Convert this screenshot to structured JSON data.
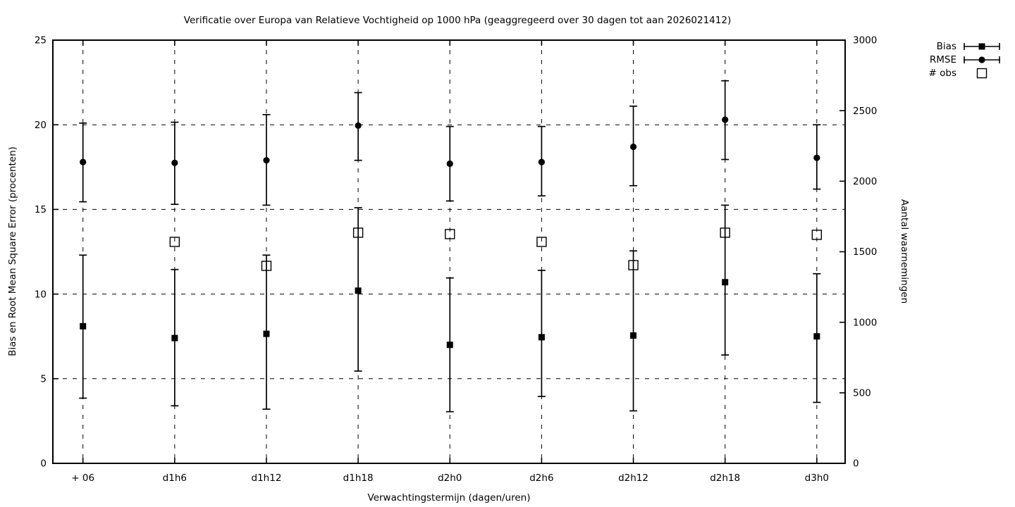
{
  "colors": {
    "foreground": "#000000",
    "background": "#ffffff"
  },
  "chart_data": {
    "type": "scatter",
    "title": "Verificatie over Europa van Relatieve Vochtigheid op 1000 hPa (geaggregeerd over 30 dagen tot aan 2026021412)",
    "xlabel": "Verwachtingstermijn (dagen/uren)",
    "ylabel_left": "Bias en Root Mean Square Error (procenten)",
    "ylabel_right": "Aantal waarnemingen",
    "ylim_left": [
      0,
      25
    ],
    "yticks_left": [
      0,
      5,
      10,
      15,
      20,
      25
    ],
    "ylim_right": [
      0,
      3000
    ],
    "yticks_right": [
      0,
      500,
      1000,
      1500,
      2000,
      2500,
      3000
    ],
    "grid": true,
    "legend_position": "outside-top-right",
    "categories": [
      "+ 06",
      "d1h6",
      "d1h12",
      "d1h18",
      "d2h0",
      "d2h6",
      "d2h12",
      "d2h18",
      "d3h0"
    ],
    "series": [
      {
        "name": "Bias",
        "axis": "left",
        "marker": "filled-square",
        "errorbars": true,
        "values": [
          8.1,
          7.4,
          7.65,
          10.2,
          7.0,
          7.45,
          7.55,
          10.7,
          7.5
        ],
        "err_lo": [
          3.85,
          3.4,
          3.2,
          5.45,
          3.05,
          3.95,
          3.1,
          6.4,
          3.6
        ],
        "err_hi": [
          12.3,
          11.45,
          12.3,
          15.1,
          10.95,
          11.4,
          12.55,
          15.25,
          11.2
        ]
      },
      {
        "name": "RMSE",
        "axis": "left",
        "marker": "filled-circle",
        "errorbars": true,
        "values": [
          17.8,
          17.75,
          17.9,
          19.95,
          17.7,
          17.8,
          18.7,
          20.3,
          18.05
        ],
        "err_lo": [
          15.45,
          15.3,
          15.25,
          17.9,
          15.5,
          15.8,
          16.4,
          17.95,
          16.2
        ],
        "err_hi": [
          20.1,
          20.15,
          20.6,
          21.9,
          19.9,
          19.9,
          21.1,
          22.6,
          20.0
        ]
      },
      {
        "name": "# obs",
        "axis": "right",
        "marker": "open-square",
        "errorbars": false,
        "values": [
          null,
          1570,
          1400,
          1635,
          1625,
          1570,
          1405,
          1635,
          1620
        ]
      }
    ]
  }
}
